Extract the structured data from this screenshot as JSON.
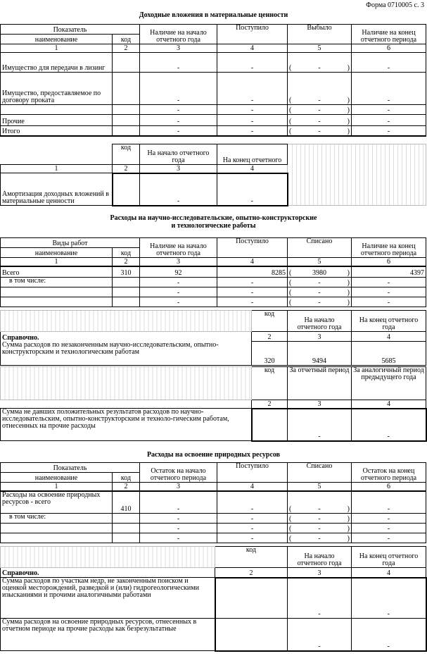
{
  "form_no": "Форма 0710005 с. 3",
  "s1": {
    "title": "Доходные вложения в материальные ценности",
    "h_pokazatel": "Показатель",
    "h_name": "наименование",
    "h_kod": "код",
    "h_c3": "Наличие на начало отчетного года",
    "h_c4": "Поступило",
    "h_c5": "Выбыло",
    "h_c6": "Наличие на конец отчетного периода",
    "nums": [
      "1",
      "2",
      "3",
      "4",
      "5",
      "6"
    ],
    "rows": [
      {
        "name": "Имущество для передачи в лизинг",
        "kod": "",
        "v3": "-",
        "v4": "-",
        "v5": "-",
        "v6": "-"
      },
      {
        "name": "Имущество, предоставляемое по договору проката",
        "kod": "",
        "v3": "-",
        "v4": "-",
        "v5": "-",
        "v6": "-"
      },
      {
        "name": "",
        "kod": "",
        "v3": "-",
        "v4": "-",
        "v5": "-",
        "v6": "-"
      },
      {
        "name": "Прочие",
        "kod": "",
        "v3": "-",
        "v4": "-",
        "v5": "-",
        "v6": "-"
      },
      {
        "name": "Итого",
        "kod": "",
        "v3": "-",
        "v4": "-",
        "v5": "-",
        "v6": "-"
      }
    ],
    "am_h_kod": "код",
    "am_h_c3": "На начало отчетного года",
    "am_h_c4": "На конец отчетного",
    "am_nums": [
      "1",
      "2",
      "3",
      "4"
    ],
    "am_name": "Амортизация доходных вложений в материальные ценности",
    "am_v3": "-",
    "am_v4": "-"
  },
  "s2": {
    "title1": "Расходы на научно-исследовательские, опытно-конструкторские",
    "title2": "и технологические работы",
    "h_vidy": "Виды работ",
    "h_name": "наименование",
    "h_kod": "код",
    "h_c3": "Наличие на начало отчетного года",
    "h_c4": "Поступило",
    "h_c5": "Списано",
    "h_c6": "Наличие на конец отчетного периода",
    "nums": [
      "1",
      "2",
      "3",
      "4",
      "5",
      "6"
    ],
    "rows": [
      {
        "name": "Всего",
        "kod": "310",
        "v3": "92",
        "v4": "8285",
        "v5": "3980",
        "v6": "4397"
      },
      {
        "name": "в том числе:",
        "kod": "",
        "v3": "-",
        "v4": "-",
        "v5": "-",
        "v6": "-"
      },
      {
        "name": "",
        "kod": "",
        "v3": "-",
        "v4": "-",
        "v5": "-",
        "v6": "-"
      },
      {
        "name": "",
        "kod": "",
        "v3": "-",
        "v4": "-",
        "v5": "-",
        "v6": "-"
      }
    ],
    "ref_kod": "код",
    "ref_c3": "На начало отчетного года",
    "ref_c4": "На конец отчетного года",
    "ref_nums": [
      "2",
      "3",
      "4"
    ],
    "ref_title": "Справочно.",
    "ref1_name": "Сумма расходов по незаконченным научно-исследовательским, опытно-конструкторским и технологическим работам",
    "ref1_kod": "320",
    "ref1_v3": "9494",
    "ref1_v4": "5685",
    "ref2_kod": "код",
    "ref2_c3": "За отчетный период",
    "ref2_c4": "За аналогичный период предыдущего года",
    "ref2_nums": [
      "2",
      "3",
      "4"
    ],
    "ref2_name": "Сумма не давших положительных результатов расходов по научно-исследовательским, опытно-конструкторским и техноло-гическим работам, отнесенных на прочие расходы",
    "ref2_v3": "-",
    "ref2_v4": "-"
  },
  "s3": {
    "title": "Расходы на освоение природных ресурсов",
    "h_pokazatel": "Показатель",
    "h_name": "наименование",
    "h_kod": "код",
    "h_c3": "Остаток на начало отчетного периода",
    "h_c4": "Поступило",
    "h_c5": "Списано",
    "h_c6": "Остаток на конец отчетного периода",
    "nums": [
      "1",
      "2",
      "3",
      "4",
      "5",
      "6"
    ],
    "rows": [
      {
        "name": "Расходы на освоение природных ресурсов - всего",
        "kod": "410",
        "v3": "-",
        "v4": "-",
        "v5": "-",
        "v6": "-"
      },
      {
        "name": "в том числе:",
        "kod": "",
        "v3": "-",
        "v4": "-",
        "v5": "-",
        "v6": "-"
      },
      {
        "name": "",
        "kod": "",
        "v3": "-",
        "v4": "-",
        "v5": "-",
        "v6": "-"
      },
      {
        "name": "",
        "kod": "",
        "v3": "-",
        "v4": "-",
        "v5": "-",
        "v6": "-"
      }
    ],
    "ref_kod": "код",
    "ref_c3": "На начало отчетного года",
    "ref_c4": "На конец отчетного года",
    "ref_nums": [
      "2",
      "3",
      "4"
    ],
    "ref_title": "Справочно.",
    "ref1_name": "Сумма расходов по участкам недр, не законченным поиском и оценкой месторождений, разведкой и (или) гидрогеологическими изысканиями и прочими аналогичными работами",
    "ref1_v3": "-",
    "ref1_v4": "-",
    "ref2_name": "Сумма расходов на освоение природных ресурсов, отнесенных в отчетном периоде на прочие расходы как безрезультатные",
    "ref2_v3": "-",
    "ref2_v4": "-"
  }
}
